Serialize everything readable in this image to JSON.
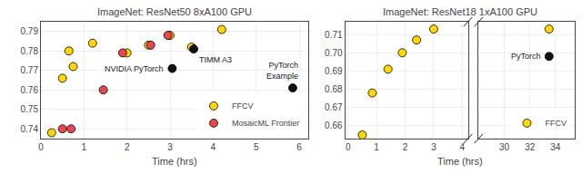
{
  "chart_data": [
    {
      "type": "scatter",
      "title": "ImageNet: ResNet50 8xA100 GPU",
      "xlabel": "Time (hrs)",
      "xlim": [
        0,
        6.2
      ],
      "ylim": [
        0.735,
        0.795
      ],
      "xticks": [
        0,
        1,
        2,
        3,
        4,
        5,
        6
      ],
      "yticks": [
        0.74,
        0.75,
        0.76,
        0.77,
        0.78,
        0.79
      ],
      "grid": true,
      "legend": "lower right",
      "series": [
        {
          "name": "FFCV",
          "color": "#FFD700",
          "x": [
            0.25,
            0.5,
            0.65,
            0.75,
            1.2,
            2.0,
            2.5,
            3.0,
            3.5,
            4.2
          ],
          "values": [
            0.738,
            0.766,
            0.78,
            0.772,
            0.784,
            0.779,
            0.783,
            0.788,
            0.782,
            0.791
          ]
        },
        {
          "name": "MosaicML Frontier",
          "color": "#E8474C",
          "x": [
            0.5,
            0.7,
            1.45,
            1.9,
            2.55,
            2.95
          ],
          "values": [
            0.74,
            0.74,
            0.76,
            0.779,
            0.783,
            0.788
          ]
        },
        {
          "color": "#111111",
          "x": [
            3.55,
            5.85
          ],
          "values": [
            0.781,
            0.761
          ]
        },
        {
          "color": "#111111",
          "x": [
            3.05
          ],
          "values": [
            0.771
          ]
        }
      ],
      "annotations": [
        {
          "text": "TIMM A3",
          "x": 3.55,
          "y": 0.781
        },
        {
          "text": "NVIDIA PyTorch",
          "x": 3.05,
          "y": 0.771
        },
        {
          "text": "PyTorch\nExample",
          "x": 5.85,
          "y": 0.761
        }
      ]
    },
    {
      "type": "scatter",
      "title": "ImageNet: ResNet18 1xA100 GPU",
      "xlabel": "Time (hrs)",
      "xlim": [
        -0.1,
        4.2
      ],
      "ylim": [
        0.653,
        0.717
      ],
      "xticks": [
        0,
        1,
        2,
        3,
        4
      ],
      "yticks": [
        0.66,
        0.67,
        0.68,
        0.69,
        {
          "value": 0.7,
          "label": "0.70"
        },
        0.71
      ],
      "grid": true,
      "series": [
        {
          "name": "FFCV",
          "color": "#FFD700",
          "x": [
            0.5,
            0.85,
            1.4,
            1.9,
            2.4,
            3.0
          ],
          "values": [
            0.655,
            0.678,
            0.691,
            0.7,
            0.707,
            0.713
          ]
        }
      ]
    },
    {
      "type": "scatter",
      "xlim": [
        28.0,
        35.5
      ],
      "ylim": [
        0.653,
        0.717
      ],
      "xticks": [
        30,
        32,
        34
      ],
      "yticks": [
        0.66,
        0.67,
        0.68,
        0.69,
        {
          "value": 0.7,
          "label": "0.70"
        },
        0.71
      ],
      "grid": true,
      "tick_labels": "x",
      "legend": "lower right",
      "series": [
        {
          "color": "#111111",
          "x": [
            33.5
          ],
          "values": [
            0.698
          ]
        },
        {
          "name": "FFCV",
          "color": "#FFD700",
          "x": [
            33.5
          ],
          "values": [
            0.713
          ]
        }
      ],
      "annotations": [
        {
          "text": "PyTorch",
          "x": 33.5,
          "y": 0.698
        }
      ]
    }
  ]
}
